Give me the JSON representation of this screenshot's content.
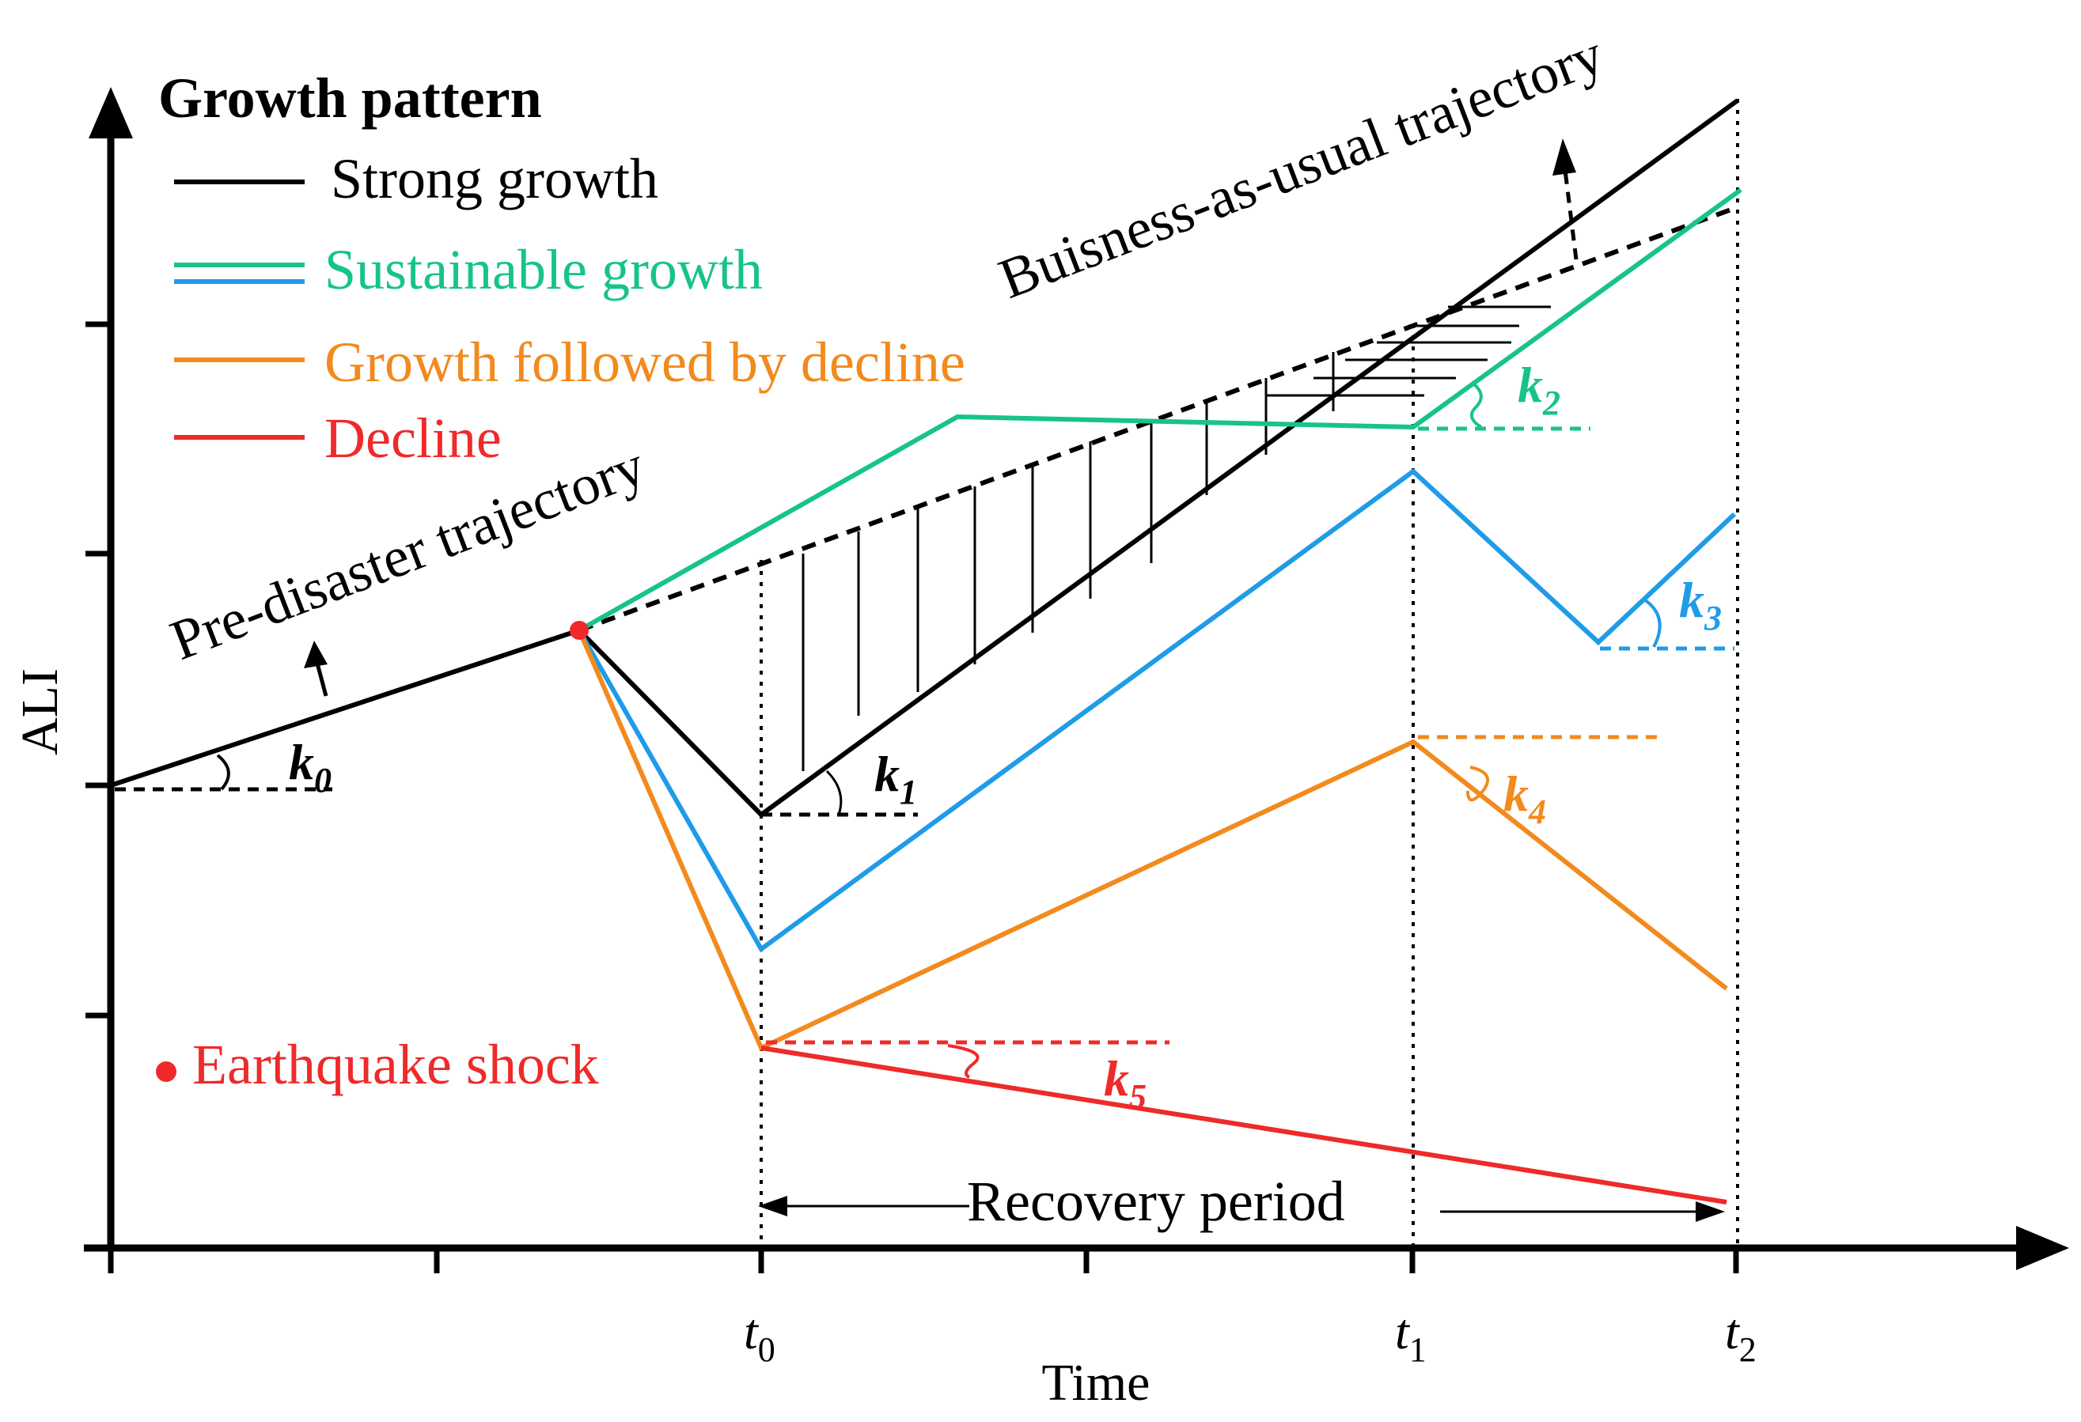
{
  "axes": {
    "y_label": "ALI",
    "x_label": "Time",
    "t0": {
      "base": "t",
      "sub": "0"
    },
    "t1": {
      "base": "t",
      "sub": "1"
    },
    "t2": {
      "base": "t",
      "sub": "2"
    }
  },
  "legend": {
    "title": "Growth pattern",
    "items": [
      {
        "label": "Strong growth",
        "color": "#000000"
      },
      {
        "label": "Sustainable growth",
        "color": "#18c38a"
      },
      {
        "label": "Growth followed by decline",
        "color": "#f28a1e"
      },
      {
        "label": "Decline",
        "color": "#ee2a2a"
      }
    ],
    "sustainable_second_color": "#1f9be8",
    "shock_label": "Earthquake shock",
    "shock_color": "#ee2a2a"
  },
  "annotations": {
    "pre_disaster": "Pre-disaster trajectory",
    "business_as_usual": "Buisness-as-usual trajectory",
    "recovery_period": "Recovery period"
  },
  "slopes": [
    {
      "base": "k",
      "sub": "0",
      "color": "#000000"
    },
    {
      "base": "k",
      "sub": "1",
      "color": "#000000"
    },
    {
      "base": "k",
      "sub": "2",
      "color": "#18c38a"
    },
    {
      "base": "k",
      "sub": "3",
      "color": "#1f9be8"
    },
    {
      "base": "k",
      "sub": "4",
      "color": "#f28a1e"
    },
    {
      "base": "k",
      "sub": "5",
      "color": "#ee2a2a"
    }
  ]
}
